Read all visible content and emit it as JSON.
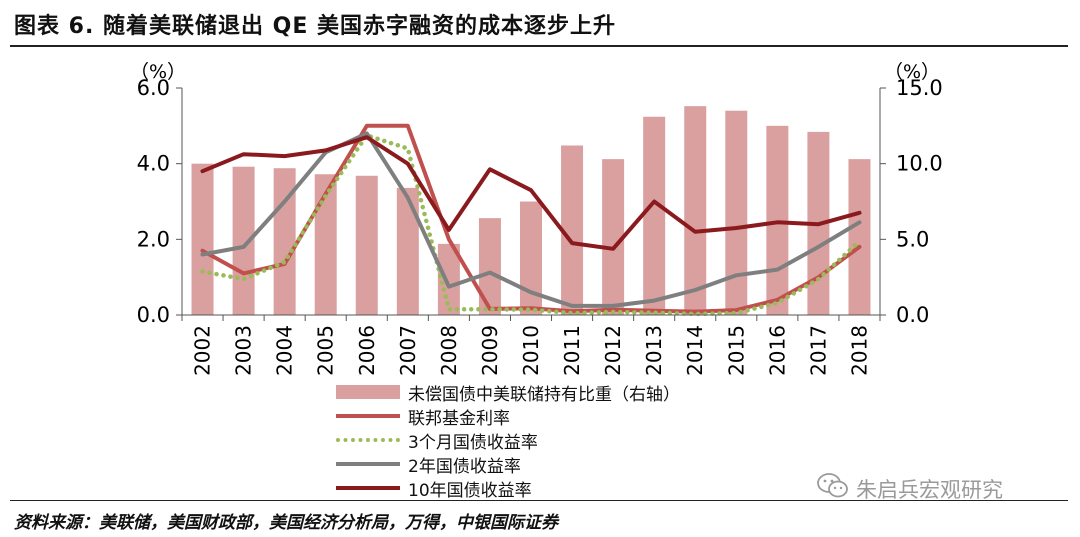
{
  "title": "图表 6. 随着美联储退出 QE 美国赤字融资的成本逐步上升",
  "source": "资料来源：美联储，美国财政部，美国经济分析局，万得，中银国际证券",
  "watermark": "朱启兵宏观研究",
  "icons": {
    "watermark": "wechat-icon"
  },
  "colors": {
    "bar": "#d9a09f",
    "fed_funds": "#c0504d",
    "t3m": "#9bbb59",
    "t2y": "#7f7f7f",
    "t10y": "#8b1a1e"
  },
  "chart_data": {
    "type": "bar",
    "categories": [
      "2002",
      "2003",
      "2004",
      "2005",
      "2006",
      "2007",
      "2008",
      "2009",
      "2010",
      "2011",
      "2012",
      "2013",
      "2014",
      "2015",
      "2016",
      "2017",
      "2018"
    ],
    "left_axis": {
      "unit": "（%）",
      "ylim": [
        0,
        6
      ],
      "ticks": [
        "0.0",
        "2.0",
        "4.0",
        "6.0"
      ]
    },
    "right_axis": {
      "unit": "（%）",
      "ylim": [
        0,
        15
      ],
      "ticks": [
        "0.0",
        "5.0",
        "10.0",
        "15.0"
      ]
    },
    "bar_series": {
      "name": "未偿国债中美联储持有比重（右轴）",
      "axis": "right",
      "values": [
        10.0,
        9.8,
        9.7,
        9.3,
        9.2,
        8.4,
        4.7,
        6.4,
        7.5,
        11.2,
        10.3,
        13.1,
        13.8,
        13.5,
        12.5,
        12.1,
        10.3
      ]
    },
    "series": [
      {
        "name": "联邦基金利率",
        "axis": "left",
        "style": "line",
        "color": "#c0504d",
        "values": [
          1.7,
          1.1,
          1.35,
          3.2,
          5.0,
          5.0,
          2.0,
          0.16,
          0.18,
          0.1,
          0.14,
          0.11,
          0.09,
          0.13,
          0.4,
          1.0,
          1.8
        ]
      },
      {
        "name": "3个月国债收益率",
        "axis": "left",
        "style": "dotted",
        "color": "#9bbb59",
        "values": [
          1.15,
          0.95,
          1.4,
          3.15,
          4.75,
          4.4,
          0.15,
          0.15,
          0.14,
          0.05,
          0.08,
          0.06,
          0.03,
          0.05,
          0.32,
          0.95,
          1.95
        ]
      },
      {
        "name": "2年国债收益率",
        "axis": "left",
        "style": "line",
        "color": "#7f7f7f",
        "values": [
          1.6,
          1.8,
          3.0,
          4.3,
          4.8,
          3.1,
          0.75,
          1.12,
          0.6,
          0.24,
          0.24,
          0.38,
          0.66,
          1.05,
          1.2,
          1.8,
          2.45
        ]
      },
      {
        "name": "10年国债收益率",
        "axis": "left",
        "style": "line",
        "color": "#8b1a1e",
        "values": [
          3.8,
          4.25,
          4.2,
          4.35,
          4.7,
          4.0,
          2.25,
          3.85,
          3.3,
          1.9,
          1.75,
          3.0,
          2.2,
          2.3,
          2.45,
          2.4,
          2.7
        ]
      }
    ],
    "legend": [
      {
        "label": "未偿国债中美联储持有比重（右轴）",
        "kind": "bar",
        "color": "#d9a09f"
      },
      {
        "label": "联邦基金利率",
        "kind": "line",
        "color": "#c0504d"
      },
      {
        "label": "3个月国债收益率",
        "kind": "dotted",
        "color": "#9bbb59"
      },
      {
        "label": "2年国债收益率",
        "kind": "line",
        "color": "#7f7f7f"
      },
      {
        "label": "10年国债收益率",
        "kind": "line",
        "color": "#8b1a1e"
      }
    ],
    "legend_position": "bottom-center",
    "grid": false
  }
}
